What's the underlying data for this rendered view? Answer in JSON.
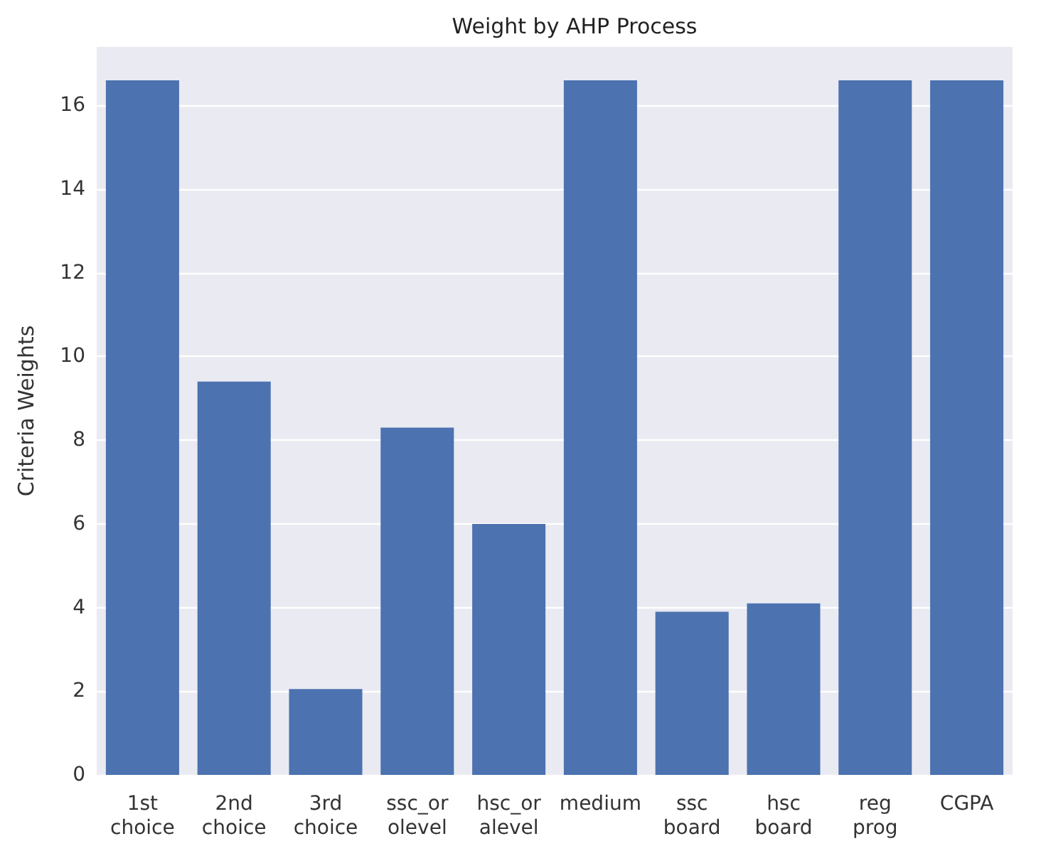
{
  "chart_data": {
    "type": "bar",
    "title": "Weight by AHP Process",
    "ylabel": "Criteria Weights",
    "categories": [
      "1st\nchoice",
      "2nd\nchoice",
      "3rd\nchoice",
      "ssc_or\nolevel",
      "hsc_or\nalevel",
      "medium",
      "ssc\nboard",
      "hsc\nboard",
      "reg\nprog",
      "CGPA"
    ],
    "values": [
      16.6,
      9.4,
      2.05,
      8.3,
      6.0,
      16.6,
      3.9,
      4.1,
      16.6,
      16.6
    ],
    "color": "#4c72b0",
    "ylim": [
      0,
      17.4
    ],
    "yticks": [
      0,
      2,
      4,
      6,
      8,
      10,
      12,
      14,
      16
    ],
    "grid": true
  }
}
